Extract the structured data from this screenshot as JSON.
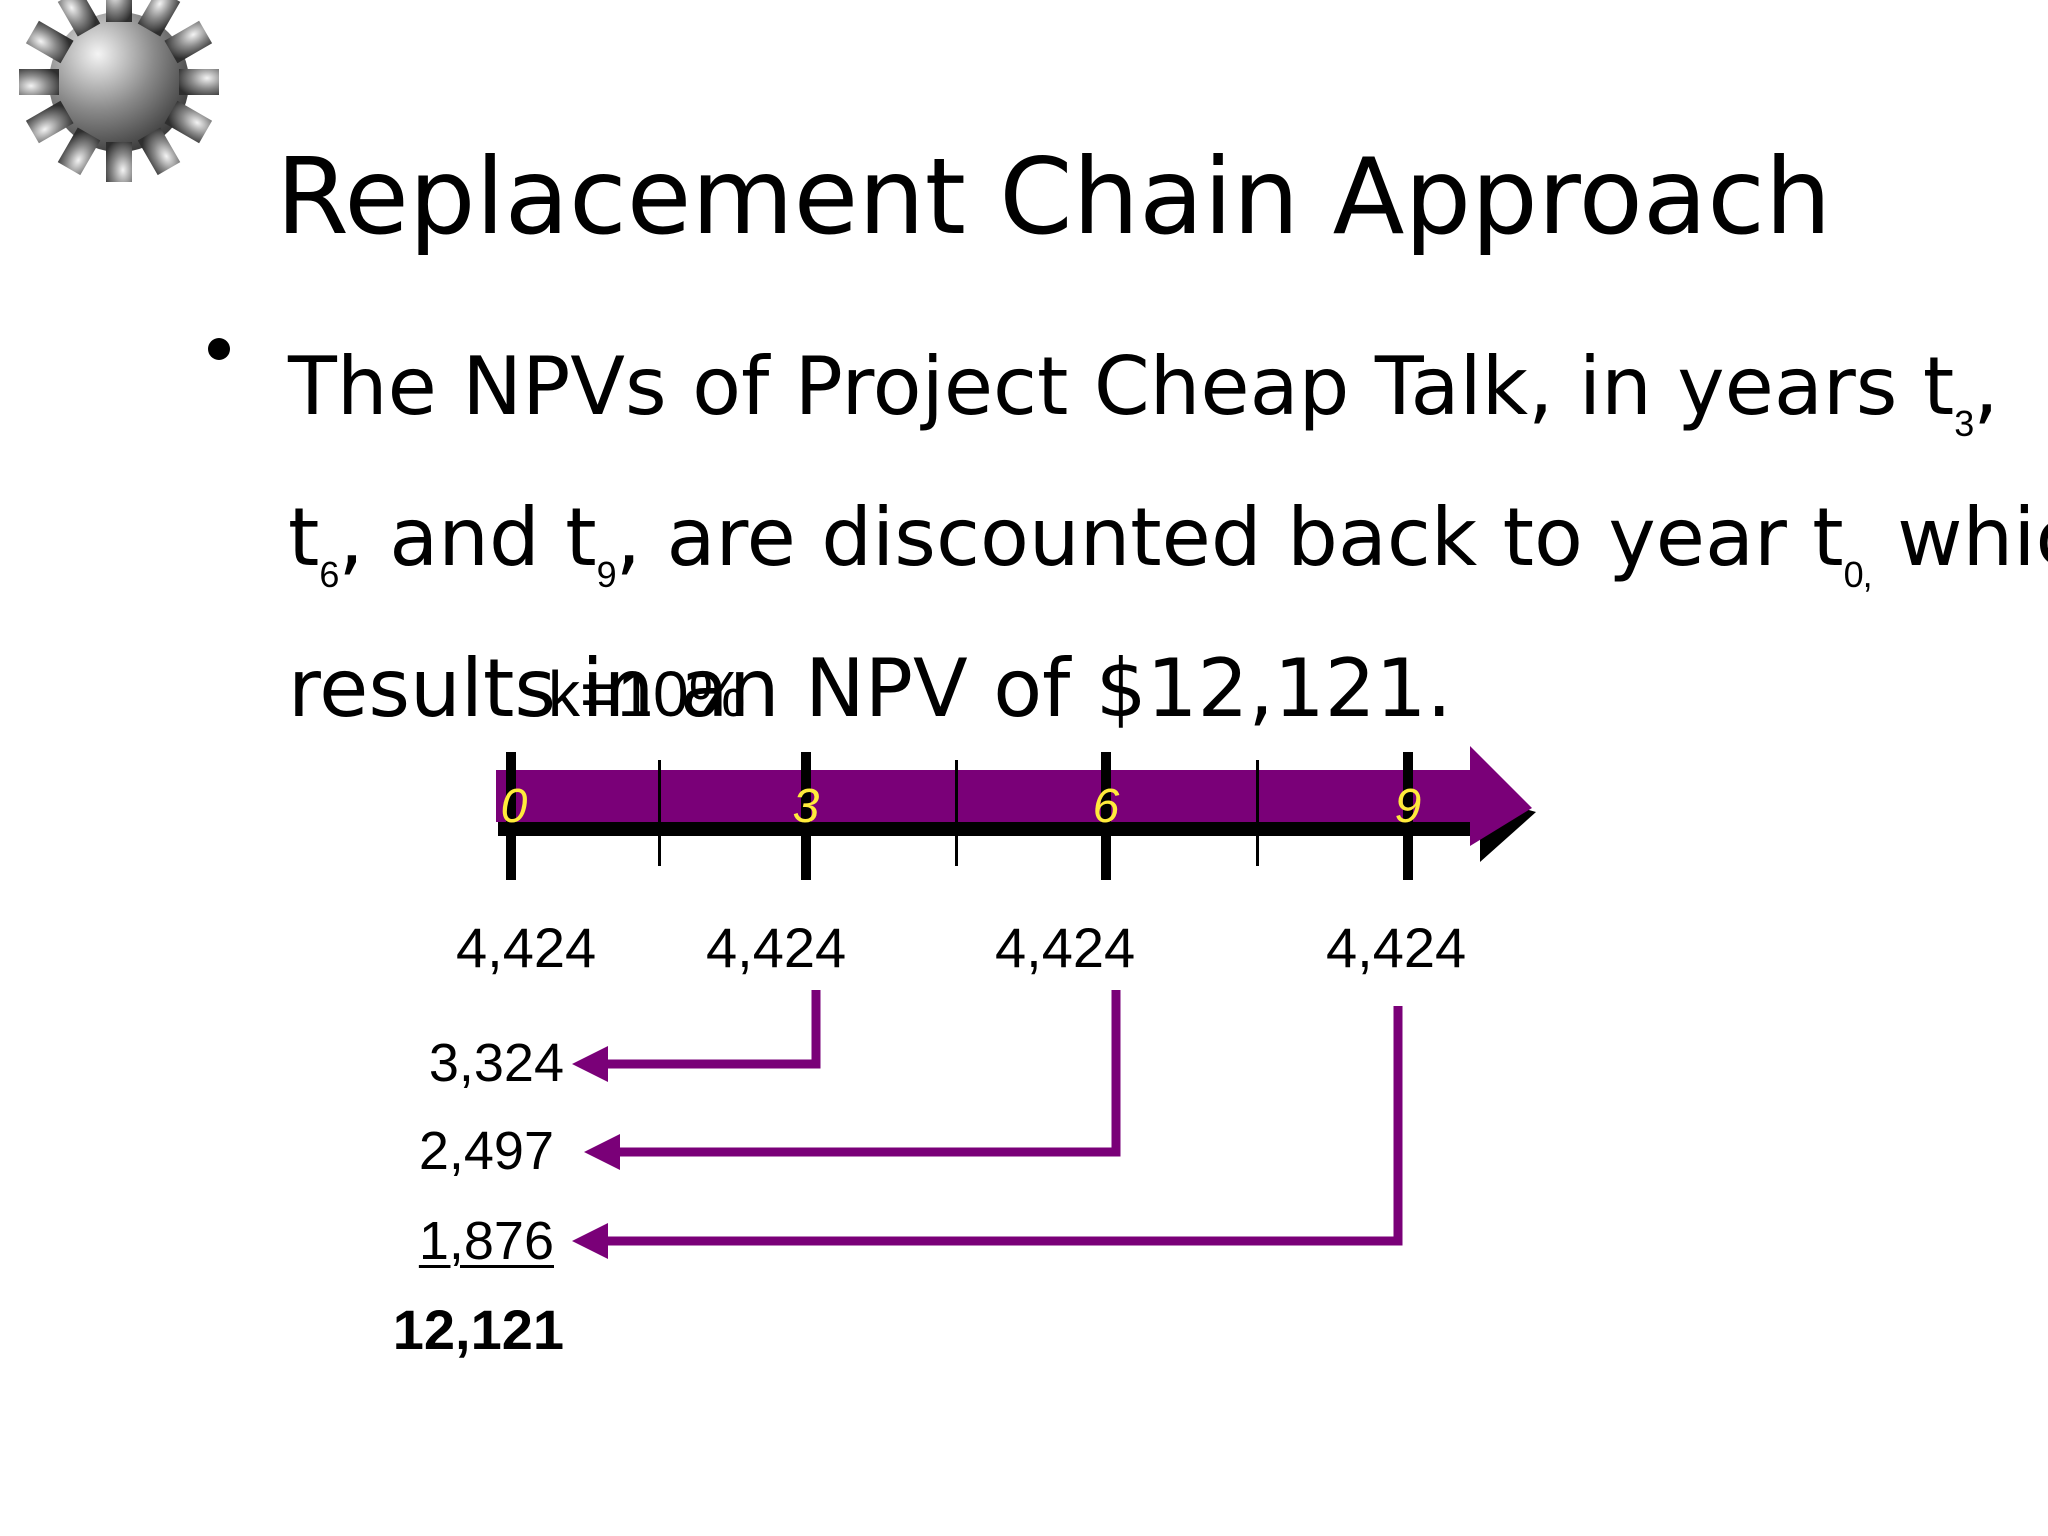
{
  "title": "Replacement Chain Approach",
  "bullet": {
    "line1_pre": "The NPVs of Project Cheap Talk, in years t",
    "line1_sub": "3",
    "line1_post": ",",
    "line2_t1": "t",
    "line2_sub1": "6",
    "line2_mid": ", and t",
    "line2_sub2": "9",
    "line2_mid2": ", are discounted back to year t",
    "line2_sub3": "0,",
    "line2_post": " which",
    "line3": "results in an NPV of $12,121."
  },
  "rate_label": "k=10%",
  "timeline": {
    "periods": [
      "0",
      "3",
      "6",
      "9"
    ],
    "arrow_color": "#7a0078",
    "period_label_color": "#ffeb3b"
  },
  "npvs": [
    "4,424",
    "4,424",
    "4,424",
    "4,424"
  ],
  "discounted": [
    "3,324",
    "2,497",
    "1,876"
  ],
  "total": "12,121",
  "icons": {
    "logo": "gear-icon"
  }
}
